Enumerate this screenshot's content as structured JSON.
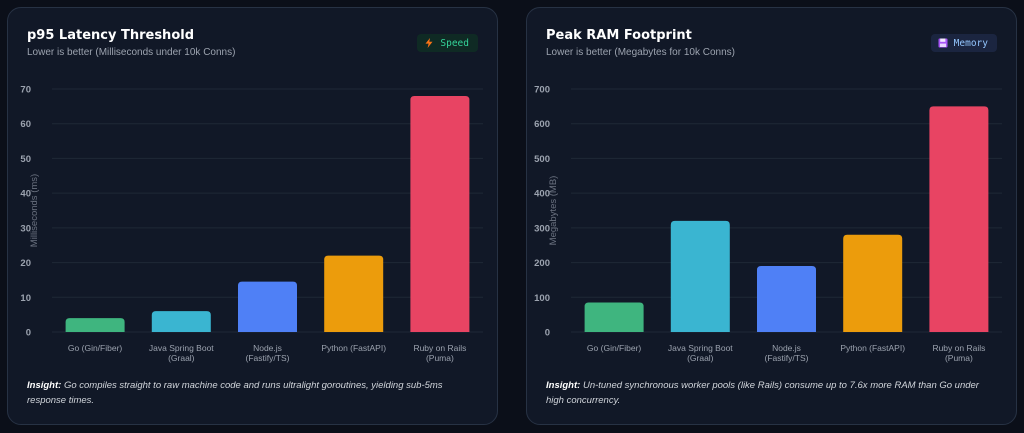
{
  "panels": [
    {
      "title": "p95 Latency Threshold",
      "subtitle": "Lower is better (Milliseconds under 10k Conns)",
      "badge": {
        "icon": "lightning-bolt-icon",
        "label": "Speed"
      },
      "insight": {
        "label": "Insight:",
        "text": "Go compiles straight to raw machine code and runs ultralight goroutines, yielding sub-5ms response times."
      }
    },
    {
      "title": "Peak RAM Footprint",
      "subtitle": "Lower is better (Megabytes for 10k Conns)",
      "badge": {
        "icon": "floppy-disk-icon",
        "label": "Memory"
      },
      "insight": {
        "label": "Insight:",
        "text": "Un-tuned synchronous worker pools (like Rails) consume up to 7.6x more RAM than Go under high concurrency."
      }
    }
  ],
  "colors": {
    "bars": [
      "#3fb57f",
      "#3ab5d1",
      "#4f80f6",
      "#ec9c0c",
      "#e84463"
    ],
    "grid": "#1f2937",
    "tick_text": "#9ca3af",
    "axis_label": "#6b7280"
  },
  "chart_data": [
    {
      "type": "bar",
      "categories": [
        [
          "Go (Gin/Fiber)"
        ],
        [
          "Java Spring Boot",
          "(Graal)"
        ],
        [
          "Node.js",
          "(Fastify/TS)"
        ],
        [
          "Python (FastAPI)"
        ],
        [
          "Ruby on Rails",
          "(Puma)"
        ]
      ],
      "values": [
        4,
        6,
        14.5,
        22,
        68
      ],
      "ylabel": "Milliseconds (ms)",
      "ylim": [
        0,
        70
      ],
      "yticks": [
        0,
        10,
        20,
        30,
        40,
        50,
        60,
        70
      ],
      "grid": true
    },
    {
      "type": "bar",
      "categories": [
        [
          "Go (Gin/Fiber)"
        ],
        [
          "Java Spring Boot",
          "(Graal)"
        ],
        [
          "Node.js",
          "(Fastify/TS)"
        ],
        [
          "Python (FastAPI)"
        ],
        [
          "Ruby on Rails",
          "(Puma)"
        ]
      ],
      "values": [
        85,
        320,
        190,
        280,
        650
      ],
      "ylabel": "Megabytes (MB)",
      "ylim": [
        0,
        700
      ],
      "yticks": [
        0,
        100,
        200,
        300,
        400,
        500,
        600,
        700
      ],
      "grid": true
    }
  ]
}
